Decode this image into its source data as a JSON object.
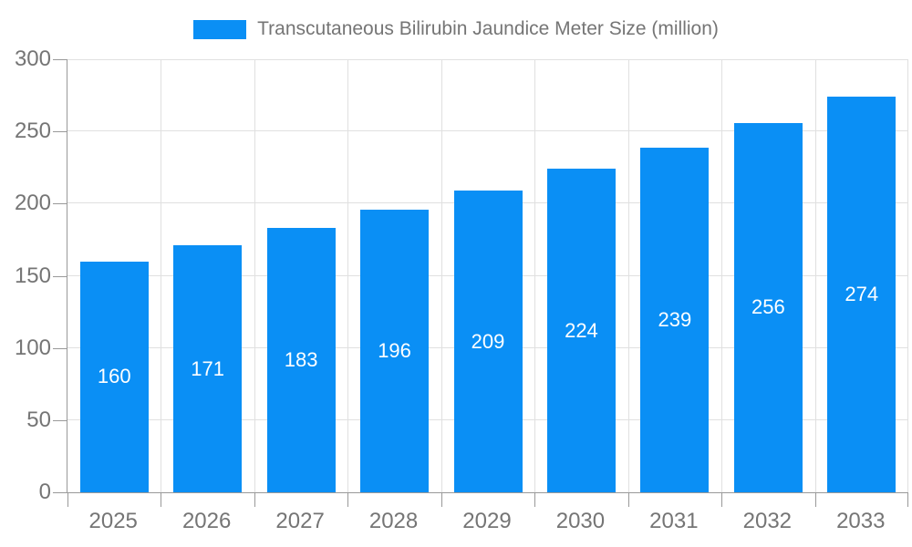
{
  "legend": {
    "label": "Transcutaneous Bilirubin Jaundice Meter Size (million)"
  },
  "colors": {
    "bar": "#0A8FF5",
    "axis_line": "#999999",
    "grid_line": "#E0E0E0",
    "tick_label": "#757575",
    "value_label": "#FFFFFF",
    "background": "#FFFFFF"
  },
  "chart_data": {
    "type": "bar",
    "title": "Transcutaneous Bilirubin Jaundice Meter Size (million)",
    "series_name": "Transcutaneous Bilirubin Jaundice Meter Size (million)",
    "categories": [
      "2025",
      "2026",
      "2027",
      "2028",
      "2029",
      "2030",
      "2031",
      "2032",
      "2033"
    ],
    "values": [
      160,
      171,
      183,
      196,
      209,
      224,
      239,
      256,
      274
    ],
    "xlabel": "",
    "ylabel": "",
    "ylim": [
      0,
      300
    ],
    "yticks": [
      0,
      50,
      100,
      150,
      200,
      250,
      300
    ],
    "grid": true,
    "legend_position": "top",
    "value_label_position": "inside-center"
  }
}
